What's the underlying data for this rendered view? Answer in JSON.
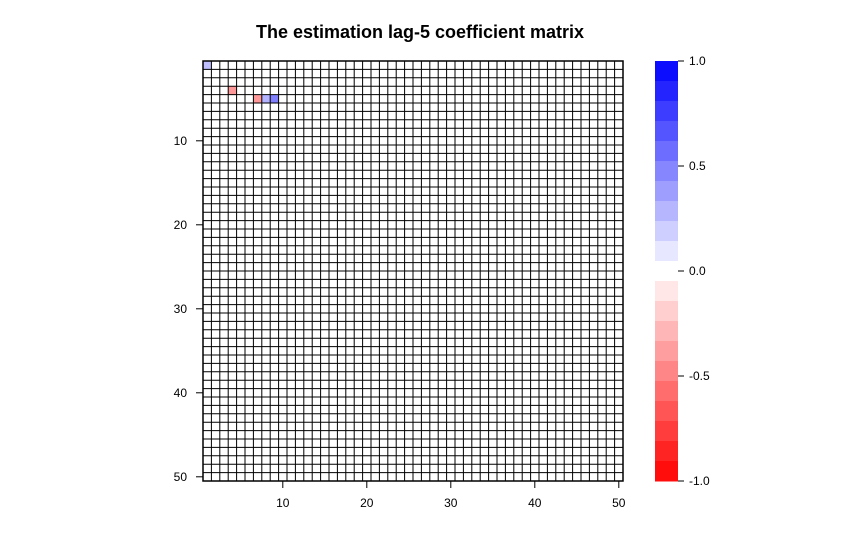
{
  "chart_data": {
    "type": "heatmap",
    "title": "The estimation lag-5 coefficient matrix",
    "xlabel": "",
    "ylabel": "",
    "nrows": 50,
    "ncols": 50,
    "x_ticks": [
      10,
      20,
      30,
      40,
      50
    ],
    "y_ticks": [
      10,
      20,
      30,
      40,
      50
    ],
    "y_axis_orientation": "top-to-bottom",
    "default_value": 0,
    "nonzero_cells": [
      {
        "row": 1,
        "col": 1,
        "value": 0.25
      },
      {
        "row": 4,
        "col": 4,
        "value": -0.4
      },
      {
        "row": 5,
        "col": 7,
        "value": -0.4
      },
      {
        "row": 5,
        "col": 8,
        "value": 0.3
      },
      {
        "row": 5,
        "col": 9,
        "value": 0.5
      }
    ],
    "colorbar": {
      "range": [
        -1.0,
        1.0
      ],
      "tick_values": [
        1.0,
        0.5,
        0.0,
        -0.5,
        -1.0
      ],
      "tick_labels": [
        "1.0",
        "0.5",
        "0.0",
        "-0.5",
        "-1.0"
      ],
      "low_color": "#FF0000",
      "mid_color": "#FFFFFF",
      "high_color": "#0000FF",
      "steps": 21
    },
    "grid": true,
    "grid_color": "#000000",
    "legend_position": "right"
  }
}
